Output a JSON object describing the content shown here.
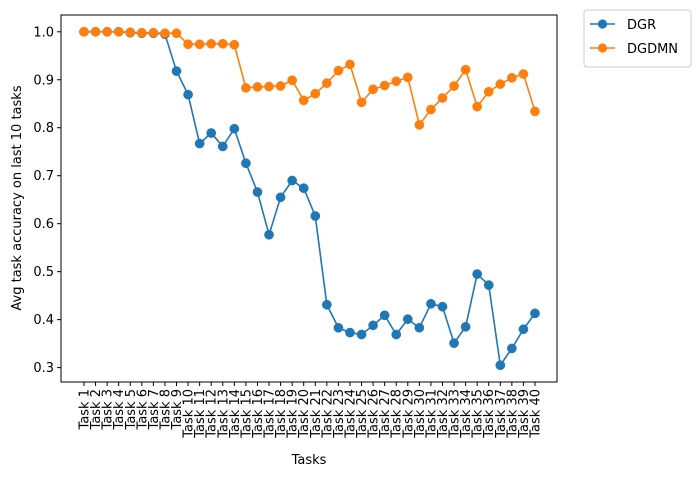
{
  "chart_data": {
    "type": "line",
    "xlabel": "Tasks",
    "ylabel": "Avg task accuracy on last 10 tasks",
    "categories": [
      "Task 1",
      "Task 2",
      "Task 3",
      "Task 4",
      "Task 5",
      "Task 6",
      "Task 7",
      "Task 8",
      "Task 9",
      "Task 10",
      "Task 11",
      "Task 12",
      "Task 13",
      "Task 14",
      "Task 15",
      "Task 16",
      "Task 17",
      "Task 18",
      "Task 19",
      "Task 20",
      "Task 21",
      "Task 22",
      "Task 23",
      "Task 24",
      "Task 25",
      "Task 26",
      "Task 27",
      "Task 28",
      "Task 29",
      "Task 30",
      "Task 31",
      "Task 32",
      "Task 33",
      "Task 34",
      "Task 35",
      "Task 36",
      "Task 37",
      "Task 38",
      "Task 39",
      "Task 40"
    ],
    "ylim": [
      0.27,
      1.035
    ],
    "yticks": [
      "0.3",
      "0.4",
      "0.5",
      "0.6",
      "0.7",
      "0.8",
      "0.9",
      "1.0"
    ],
    "grid": false,
    "legend_position": "outside-top-right",
    "series": [
      {
        "name": "DGR",
        "color": "#1f77b4",
        "values": [
          1.0,
          1.0,
          1.0,
          1.0,
          0.998,
          0.997,
          0.997,
          0.995,
          0.918,
          0.869,
          0.767,
          0.789,
          0.761,
          0.798,
          0.726,
          0.666,
          0.577,
          0.655,
          0.69,
          0.674,
          0.616,
          0.431,
          0.383,
          0.373,
          0.369,
          0.388,
          0.409,
          0.369,
          0.401,
          0.383,
          0.433,
          0.427,
          0.351,
          0.385,
          0.495,
          0.472,
          0.305,
          0.34,
          0.38,
          0.413
        ]
      },
      {
        "name": "DGDMN",
        "color": "#ff7f0e",
        "values": [
          1.0,
          1.0,
          1.0,
          1.0,
          0.999,
          0.998,
          0.998,
          0.997,
          0.997,
          0.974,
          0.974,
          0.975,
          0.975,
          0.973,
          0.883,
          0.885,
          0.886,
          0.887,
          0.899,
          0.857,
          0.871,
          0.893,
          0.919,
          0.932,
          0.853,
          0.88,
          0.888,
          0.897,
          0.905,
          0.806,
          0.838,
          0.862,
          0.887,
          0.921,
          0.844,
          0.875,
          0.891,
          0.904,
          0.912,
          0.834
        ]
      }
    ]
  }
}
